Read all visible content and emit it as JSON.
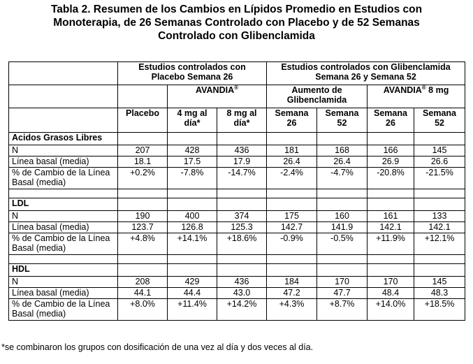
{
  "title": {
    "line1": "Tabla 2. Resumen de los Cambios en Lípidos Promedio en Estudios con",
    "line2": "Monoterapia, de 26 Semanas Controlado con Placebo y de 52 Semanas",
    "line3": "Controlado con Glibenclamida"
  },
  "header": {
    "group1": "Estudios controlados con Placebo Semana 26",
    "group2": "Estudios controlados con Glibenclamida Semana 26 y Semana 52",
    "avandia1": "AVANDIA",
    "avandia_reg": "®",
    "aumento": "Aumento de Glibenclamida",
    "avandia2": "AVANDIA",
    "avandia2_reg": "®",
    "avandia2_dose": " 8 mg",
    "cols": [
      "Placebo",
      "4 mg al día*",
      "8 mg al día*",
      "Semana 26",
      "Semana 52",
      "Semana 26",
      "Semana 52"
    ]
  },
  "sections": [
    {
      "name": "Acidos Grasos Libres",
      "rows": [
        {
          "label": "N",
          "values": [
            "207",
            "428",
            "436",
            "181",
            "168",
            "166",
            "145"
          ]
        },
        {
          "label": "Línea basal (media)",
          "values": [
            "18.1",
            "17.5",
            "17.9",
            "26.4",
            "26.4",
            "26.9",
            "26.6"
          ]
        },
        {
          "label": "% de Cambio de la Línea Basal (media)",
          "values": [
            "+0.2%",
            "-7.8%",
            "-14.7%",
            "-2.4%",
            "-4.7%",
            "-20.8%",
            "-21.5%"
          ]
        }
      ]
    },
    {
      "name": "LDL",
      "rows": [
        {
          "label": "N",
          "values": [
            "190",
            "400",
            "374",
            "175",
            "160",
            "161",
            "133"
          ]
        },
        {
          "label": "Línea basal (media)",
          "values": [
            "123.7",
            "126.8",
            "125.3",
            "142.7",
            "141.9",
            "142.1",
            "142.1"
          ]
        },
        {
          "label": "% de Cambio de la Línea Basal (media)",
          "values": [
            "+4.8%",
            "+14.1%",
            "+18.6%",
            "-0.9%",
            "-0.5%",
            "+11.9%",
            "+12.1%"
          ]
        }
      ]
    },
    {
      "name": "HDL",
      "rows": [
        {
          "label": "N",
          "values": [
            "208",
            "429",
            "436",
            "184",
            "170",
            "170",
            "145"
          ]
        },
        {
          "label": "Línea basal (media)",
          "values": [
            "44.1",
            "44.4",
            "43.0",
            "47.2",
            "47.7",
            "48.4",
            "48.3"
          ]
        },
        {
          "label": "% de Cambio de la Línea Basal (media)",
          "values": [
            "+8.0%",
            "+11.4%",
            "+14.2%",
            "+4.3%",
            "+8.7%",
            "+14.0%",
            "+18.5%"
          ]
        }
      ]
    }
  ],
  "footnote": "*se combinaron los grupos con dosificación de una vez al día y dos veces al día."
}
